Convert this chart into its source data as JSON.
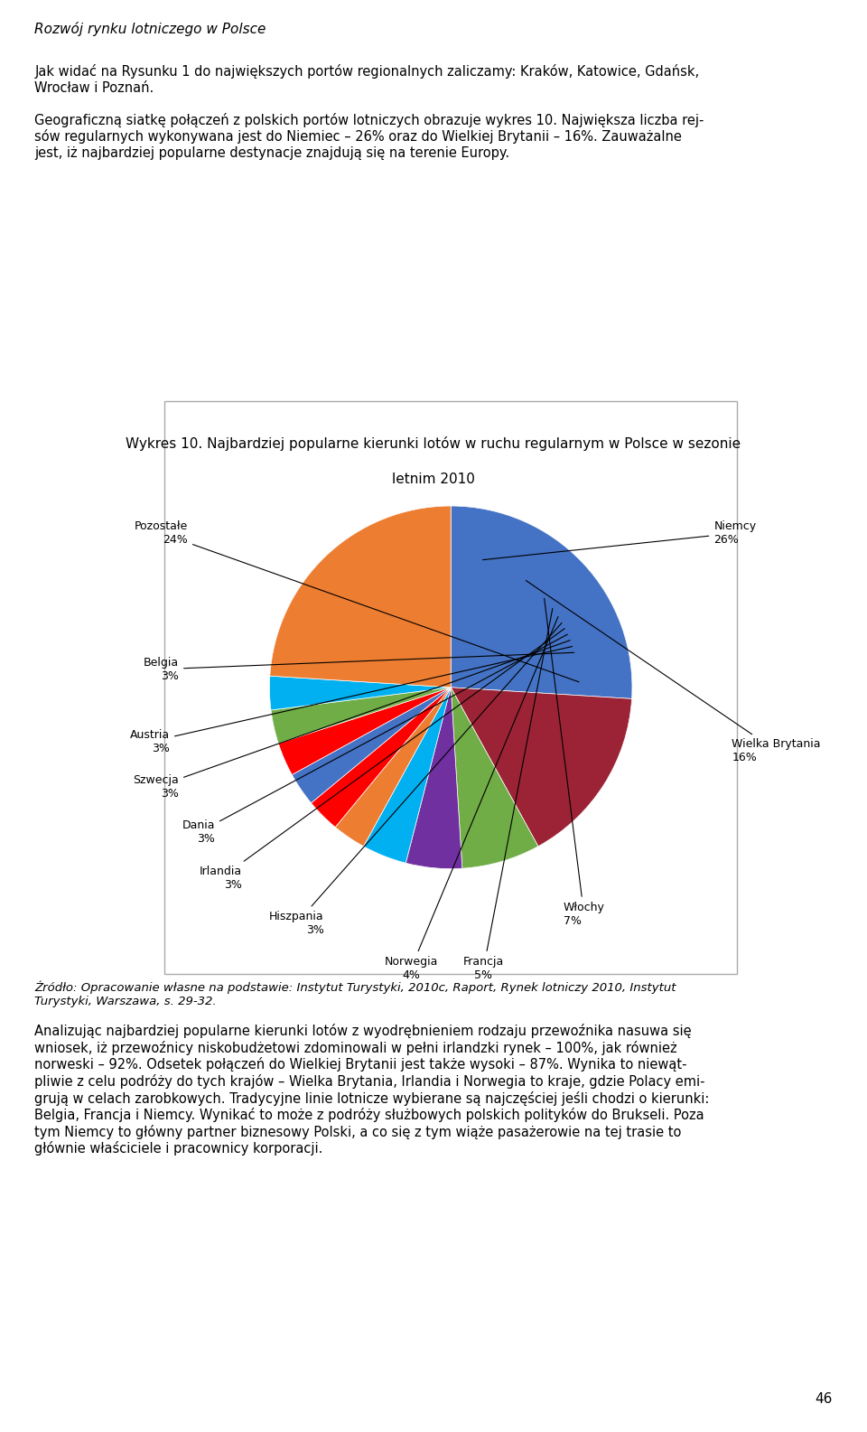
{
  "title_line1": "Wykres 10. Najbardziej popularne kierunki lotów w ruchu regularnym w Polsce w sezonie",
  "title_line2": "letnim 2010",
  "slices": [
    {
      "label": "Niemcy",
      "pct": 26,
      "color": "#4472C4"
    },
    {
      "label": "Wielka Brytania",
      "pct": 16,
      "color": "#9B2335"
    },
    {
      "label": "Włochy",
      "pct": 7,
      "color": "#70AD47"
    },
    {
      "label": "Francja",
      "pct": 5,
      "color": "#7030A0"
    },
    {
      "label": "Norwegia",
      "pct": 4,
      "color": "#00B0F0"
    },
    {
      "label": "Hiszpania",
      "pct": 3,
      "color": "#ED7D31"
    },
    {
      "label": "Irlandia",
      "pct": 3,
      "color": "#FF0000"
    },
    {
      "label": "Dania",
      "pct": 3,
      "color": "#4472C4"
    },
    {
      "label": "Szwecja",
      "pct": 3,
      "color": "#FF0000"
    },
    {
      "label": "Austria",
      "pct": 3,
      "color": "#70AD47"
    },
    {
      "label": "Belgia",
      "pct": 3,
      "color": "#00B0F0"
    },
    {
      "label": "Pozostałe",
      "pct": 24,
      "color": "#ED7D31"
    }
  ],
  "source": "Źródło: Opracowanie własne na podstawie: Instytut Turystyki, 2010c, Raport, Rynek lotniczy 2010, Instytut\nTurystyki, Warszawa, s. 29-32.",
  "header_line1": "Rozwój rynku lotniczego w Polsce",
  "body_text": "Jak widać na Rysunku 1 do największych portów regionalnych zaliczamy: Kraków, Katowice, Gdańsk,\nWrocław i Poznań.",
  "bg_color": "#ffffff"
}
